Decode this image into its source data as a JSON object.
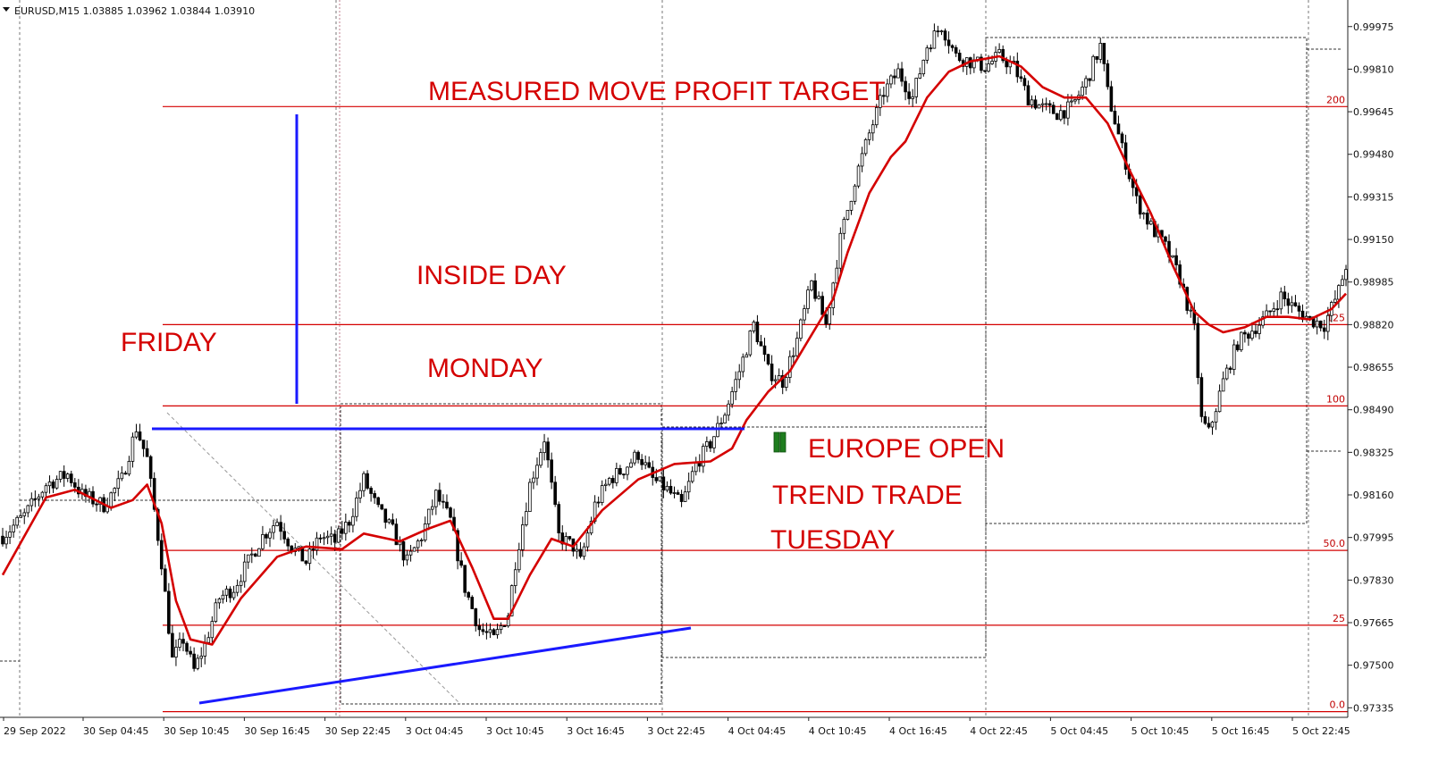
{
  "chart_data": {
    "type": "candlestick",
    "symbol_header": "EURUSD,M15  1.03885 1.03962 1.03844 1.03910",
    "y_axis": {
      "tick_labels": [
        "0.99975",
        "0.99810",
        "0.99645",
        "0.99480",
        "0.99315",
        "0.99150",
        "0.98985",
        "0.98820",
        "0.98655",
        "0.98490",
        "0.98325",
        "0.98160",
        "0.97995",
        "0.97830",
        "0.97665",
        "0.97500",
        "0.97335"
      ],
      "ylim": [
        0.97298,
        1.00078
      ]
    },
    "x_axis": {
      "tick_labels": [
        "29 Sep 2022",
        "30 Sep 04:45",
        "30 Sep 10:45",
        "30 Sep 16:45",
        "30 Sep 22:45",
        "3 Oct 04:45",
        "3 Oct 10:45",
        "3 Oct 16:45",
        "3 Oct 22:45",
        "4 Oct 04:45",
        "4 Oct 10:45",
        "4 Oct 16:45",
        "4 Oct 22:45",
        "5 Oct 04:45",
        "5 Oct 10:45",
        "5 Oct 16:45",
        "5 Oct 22:45"
      ]
    },
    "fib_levels": [
      {
        "label": "200",
        "value": 0.99665
      },
      {
        "label": "125",
        "value": 0.9882
      },
      {
        "label": "100",
        "value": 0.98505
      },
      {
        "label": "50.0",
        "value": 0.97945
      },
      {
        "label": "25",
        "value": 0.97655
      },
      {
        "label": "0.0",
        "value": 0.9732
      }
    ],
    "price_path": [
      [
        0,
        0.98
      ],
      [
        6,
        0.9808
      ],
      [
        12,
        0.982
      ],
      [
        18,
        0.9824
      ],
      [
        22,
        0.9816
      ],
      [
        28,
        0.9812
      ],
      [
        33,
        0.9822
      ],
      [
        37,
        0.9842
      ],
      [
        40,
        0.983
      ],
      [
        44,
        0.979
      ],
      [
        47,
        0.9752
      ],
      [
        50,
        0.976
      ],
      [
        53,
        0.9748
      ],
      [
        56,
        0.9758
      ],
      [
        60,
        0.9776
      ],
      [
        64,
        0.978
      ],
      [
        68,
        0.979
      ],
      [
        72,
        0.98
      ],
      [
        76,
        0.9806
      ],
      [
        80,
        0.9796
      ],
      [
        84,
        0.979
      ],
      [
        88,
        0.98
      ],
      [
        92,
        0.9798
      ],
      [
        96,
        0.9806
      ],
      [
        100,
        0.9822
      ],
      [
        104,
        0.981
      ],
      [
        108,
        0.9802
      ],
      [
        112,
        0.979
      ],
      [
        116,
        0.98
      ],
      [
        120,
        0.9816
      ],
      [
        124,
        0.9806
      ],
      [
        128,
        0.978
      ],
      [
        132,
        0.9764
      ],
      [
        136,
        0.976
      ],
      [
        140,
        0.977
      ],
      [
        142,
        0.979
      ],
      [
        146,
        0.982
      ],
      [
        150,
        0.9838
      ],
      [
        154,
        0.98
      ],
      [
        158,
        0.9796
      ],
      [
        160,
        0.979
      ],
      [
        164,
        0.9812
      ],
      [
        168,
        0.9822
      ],
      [
        172,
        0.9826
      ],
      [
        176,
        0.9832
      ],
      [
        180,
        0.9822
      ],
      [
        184,
        0.9818
      ],
      [
        188,
        0.9812
      ],
      [
        192,
        0.9828
      ],
      [
        196,
        0.9836
      ],
      [
        200,
        0.9848
      ],
      [
        204,
        0.9864
      ],
      [
        208,
        0.9882
      ],
      [
        212,
        0.9864
      ],
      [
        216,
        0.986
      ],
      [
        220,
        0.9876
      ],
      [
        224,
        0.9898
      ],
      [
        228,
        0.9882
      ],
      [
        232,
        0.9915
      ],
      [
        236,
        0.9938
      ],
      [
        240,
        0.9956
      ],
      [
        244,
        0.9972
      ],
      [
        248,
        0.998
      ],
      [
        252,
        0.997
      ],
      [
        256,
        0.999
      ],
      [
        260,
        0.9998
      ],
      [
        264,
        0.9986
      ],
      [
        268,
        0.9984
      ],
      [
        272,
        0.9982
      ],
      [
        276,
        0.9986
      ],
      [
        280,
        0.9982
      ],
      [
        284,
        0.997
      ],
      [
        288,
        0.9966
      ],
      [
        292,
        0.9964
      ],
      [
        296,
        0.9966
      ],
      [
        300,
        0.9976
      ],
      [
        304,
        0.999
      ],
      [
        306,
        0.9972
      ],
      [
        310,
        0.995
      ],
      [
        314,
        0.993
      ],
      [
        318,
        0.992
      ],
      [
        322,
        0.9912
      ],
      [
        326,
        0.99
      ],
      [
        330,
        0.988
      ],
      [
        332,
        0.9845
      ],
      [
        334,
        0.984
      ],
      [
        338,
        0.986
      ],
      [
        342,
        0.9875
      ],
      [
        346,
        0.988
      ],
      [
        350,
        0.9885
      ],
      [
        354,
        0.9893
      ],
      [
        358,
        0.9888
      ],
      [
        362,
        0.9884
      ],
      [
        366,
        0.9882
      ],
      [
        370,
        0.9895
      ],
      [
        372,
        0.9905
      ]
    ],
    "moving_average": [
      [
        0,
        0.9785
      ],
      [
        12,
        0.9815
      ],
      [
        20,
        0.9818
      ],
      [
        30,
        0.9811
      ],
      [
        36,
        0.9814
      ],
      [
        40,
        0.982
      ],
      [
        44,
        0.9805
      ],
      [
        48,
        0.9775
      ],
      [
        52,
        0.976
      ],
      [
        58,
        0.9758
      ],
      [
        66,
        0.9776
      ],
      [
        76,
        0.9792
      ],
      [
        84,
        0.9796
      ],
      [
        94,
        0.9795
      ],
      [
        100,
        0.9801
      ],
      [
        110,
        0.9798
      ],
      [
        118,
        0.9803
      ],
      [
        124,
        0.9806
      ],
      [
        130,
        0.9788
      ],
      [
        136,
        0.9768
      ],
      [
        140,
        0.9768
      ],
      [
        146,
        0.9785
      ],
      [
        152,
        0.9799
      ],
      [
        158,
        0.9796
      ],
      [
        166,
        0.981
      ],
      [
        176,
        0.9822
      ],
      [
        186,
        0.9828
      ],
      [
        196,
        0.9829
      ],
      [
        202,
        0.9834
      ],
      [
        206,
        0.9845
      ],
      [
        212,
        0.9856
      ],
      [
        218,
        0.9864
      ],
      [
        224,
        0.9878
      ],
      [
        230,
        0.9892
      ],
      [
        234,
        0.991
      ],
      [
        240,
        0.9933
      ],
      [
        246,
        0.9947
      ],
      [
        250,
        0.9953
      ],
      [
        256,
        0.997
      ],
      [
        262,
        0.998
      ],
      [
        268,
        0.9984
      ],
      [
        276,
        0.9986
      ],
      [
        282,
        0.9982
      ],
      [
        288,
        0.9974
      ],
      [
        294,
        0.997
      ],
      [
        300,
        0.997
      ],
      [
        306,
        0.996
      ],
      [
        312,
        0.9942
      ],
      [
        318,
        0.9925
      ],
      [
        324,
        0.9905
      ],
      [
        330,
        0.9887
      ],
      [
        334,
        0.9882
      ],
      [
        338,
        0.9879
      ],
      [
        344,
        0.9881
      ],
      [
        350,
        0.9885
      ],
      [
        356,
        0.9885
      ],
      [
        362,
        0.9884
      ],
      [
        368,
        0.9888
      ],
      [
        372,
        0.9894
      ]
    ],
    "annotations": {
      "measured_move": "MEASURED MOVE PROFIT TARGET",
      "inside_day": "INSIDE DAY",
      "friday": "FRIDAY",
      "monday": "MONDAY",
      "europe_open": "EUROPE OPEN",
      "trend_trade": "TREND TRADE",
      "tuesday": "TUESDAY"
    },
    "colors": {
      "candle": "#000000",
      "moving_average": "#d40000",
      "fib_line": "#d40000",
      "trend_line": "#1a1aff",
      "annotation_text": "#d40000",
      "entry_bars": "#1e7d1e"
    }
  }
}
